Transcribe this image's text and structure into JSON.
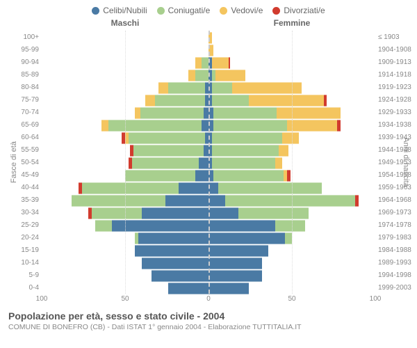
{
  "legend": {
    "items": [
      {
        "label": "Celibi/Nubili",
        "color": "#4a7aa4"
      },
      {
        "label": "Coniugati/e",
        "color": "#a8cf8e"
      },
      {
        "label": "Vedovi/e",
        "color": "#f4c55f"
      },
      {
        "label": "Divorziati/e",
        "color": "#d13b2e"
      }
    ]
  },
  "headers": {
    "male": "Maschi",
    "female": "Femmine"
  },
  "axis_labels": {
    "left": "Fasce di età",
    "right": "Anni di nascita"
  },
  "x_axis": {
    "max": 100,
    "ticks": [
      100,
      50,
      0,
      50,
      100
    ]
  },
  "colors": {
    "single": "#4a7aa4",
    "married": "#a8cf8e",
    "widowed": "#f4c55f",
    "divorced": "#d13b2e",
    "grid": "#dddddd",
    "center": "#cccccc",
    "bg": "#ffffff"
  },
  "footer": {
    "title": "Popolazione per età, sesso e stato civile - 2004",
    "subtitle": "COMUNE DI BONEFRO (CB) - Dati ISTAT 1° gennaio 2004 - Elaborazione TUTTITALIA.IT"
  },
  "rows": [
    {
      "age": "100+",
      "birth": "≤ 1903",
      "m": {
        "s": 0,
        "c": 0,
        "w": 0,
        "d": 0
      },
      "f": {
        "s": 0,
        "c": 0,
        "w": 2,
        "d": 0
      }
    },
    {
      "age": "95-99",
      "birth": "1904-1908",
      "m": {
        "s": 0,
        "c": 0,
        "w": 0,
        "d": 0
      },
      "f": {
        "s": 0,
        "c": 0,
        "w": 3,
        "d": 0
      }
    },
    {
      "age": "90-94",
      "birth": "1909-1913",
      "m": {
        "s": 0,
        "c": 4,
        "w": 4,
        "d": 0
      },
      "f": {
        "s": 2,
        "c": 0,
        "w": 10,
        "d": 1
      }
    },
    {
      "age": "85-89",
      "birth": "1914-1918",
      "m": {
        "s": 0,
        "c": 8,
        "w": 4,
        "d": 0
      },
      "f": {
        "s": 2,
        "c": 2,
        "w": 18,
        "d": 0
      }
    },
    {
      "age": "80-84",
      "birth": "1919-1923",
      "m": {
        "s": 2,
        "c": 22,
        "w": 6,
        "d": 0
      },
      "f": {
        "s": 2,
        "c": 12,
        "w": 42,
        "d": 0
      }
    },
    {
      "age": "75-79",
      "birth": "1924-1928",
      "m": {
        "s": 2,
        "c": 30,
        "w": 6,
        "d": 0
      },
      "f": {
        "s": 2,
        "c": 22,
        "w": 45,
        "d": 2
      }
    },
    {
      "age": "70-74",
      "birth": "1929-1933",
      "m": {
        "s": 3,
        "c": 38,
        "w": 3,
        "d": 0
      },
      "f": {
        "s": 3,
        "c": 38,
        "w": 38,
        "d": 0
      }
    },
    {
      "age": "65-69",
      "birth": "1934-1938",
      "m": {
        "s": 4,
        "c": 56,
        "w": 4,
        "d": 0
      },
      "f": {
        "s": 3,
        "c": 44,
        "w": 30,
        "d": 2
      }
    },
    {
      "age": "60-64",
      "birth": "1939-1943",
      "m": {
        "s": 2,
        "c": 46,
        "w": 2,
        "d": 2
      },
      "f": {
        "s": 2,
        "c": 42,
        "w": 10,
        "d": 0
      }
    },
    {
      "age": "55-59",
      "birth": "1944-1948",
      "m": {
        "s": 3,
        "c": 42,
        "w": 0,
        "d": 2
      },
      "f": {
        "s": 2,
        "c": 40,
        "w": 6,
        "d": 0
      }
    },
    {
      "age": "50-54",
      "birth": "1949-1953",
      "m": {
        "s": 6,
        "c": 40,
        "w": 0,
        "d": 2
      },
      "f": {
        "s": 2,
        "c": 38,
        "w": 4,
        "d": 0
      }
    },
    {
      "age": "45-49",
      "birth": "1954-1958",
      "m": {
        "s": 8,
        "c": 42,
        "w": 0,
        "d": 0
      },
      "f": {
        "s": 3,
        "c": 42,
        "w": 2,
        "d": 2
      }
    },
    {
      "age": "40-44",
      "birth": "1959-1963",
      "m": {
        "s": 18,
        "c": 58,
        "w": 0,
        "d": 2
      },
      "f": {
        "s": 6,
        "c": 62,
        "w": 0,
        "d": 0
      }
    },
    {
      "age": "35-39",
      "birth": "1964-1968",
      "m": {
        "s": 26,
        "c": 56,
        "w": 0,
        "d": 0
      },
      "f": {
        "s": 10,
        "c": 78,
        "w": 0,
        "d": 2
      }
    },
    {
      "age": "30-34",
      "birth": "1969-1973",
      "m": {
        "s": 40,
        "c": 30,
        "w": 0,
        "d": 2
      },
      "f": {
        "s": 18,
        "c": 42,
        "w": 0,
        "d": 0
      }
    },
    {
      "age": "25-29",
      "birth": "1974-1978",
      "m": {
        "s": 58,
        "c": 10,
        "w": 0,
        "d": 0
      },
      "f": {
        "s": 40,
        "c": 18,
        "w": 0,
        "d": 0
      }
    },
    {
      "age": "20-24",
      "birth": "1979-1983",
      "m": {
        "s": 42,
        "c": 2,
        "w": 0,
        "d": 0
      },
      "f": {
        "s": 46,
        "c": 4,
        "w": 0,
        "d": 0
      }
    },
    {
      "age": "15-19",
      "birth": "1984-1988",
      "m": {
        "s": 44,
        "c": 0,
        "w": 0,
        "d": 0
      },
      "f": {
        "s": 36,
        "c": 0,
        "w": 0,
        "d": 0
      }
    },
    {
      "age": "10-14",
      "birth": "1989-1993",
      "m": {
        "s": 40,
        "c": 0,
        "w": 0,
        "d": 0
      },
      "f": {
        "s": 32,
        "c": 0,
        "w": 0,
        "d": 0
      }
    },
    {
      "age": "5-9",
      "birth": "1994-1998",
      "m": {
        "s": 34,
        "c": 0,
        "w": 0,
        "d": 0
      },
      "f": {
        "s": 32,
        "c": 0,
        "w": 0,
        "d": 0
      }
    },
    {
      "age": "0-4",
      "birth": "1999-2003",
      "m": {
        "s": 24,
        "c": 0,
        "w": 0,
        "d": 0
      },
      "f": {
        "s": 24,
        "c": 0,
        "w": 0,
        "d": 0
      }
    }
  ]
}
